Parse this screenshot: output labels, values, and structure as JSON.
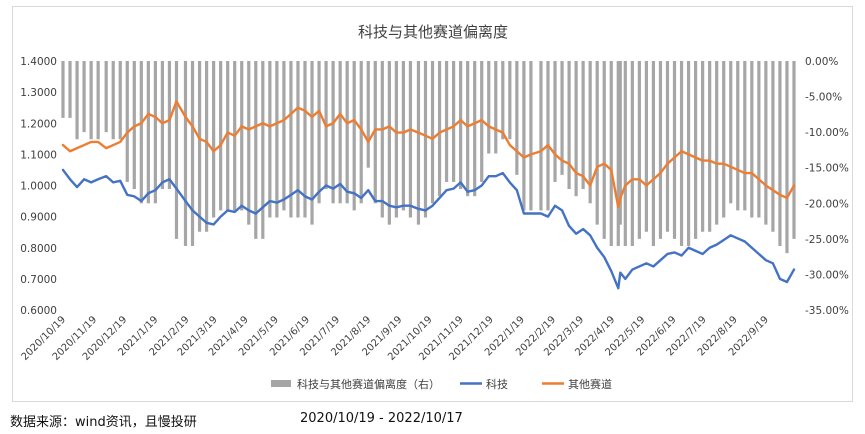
{
  "chart_data": {
    "type": "line",
    "title": "科技与其他赛道偏离度",
    "x_start": "2020/10/19",
    "x_end": "2022/10/17",
    "x_tick_labels": [
      "2020/10/19",
      "2020/11/19",
      "2020/12/19",
      "2021/1/19",
      "2021/2/19",
      "2021/3/19",
      "2021/4/19",
      "2021/5/19",
      "2021/6/19",
      "2021/7/19",
      "2021/8/19",
      "2021/9/19",
      "2021/10/19",
      "2021/11/19",
      "2021/12/19",
      "2022/1/19",
      "2022/2/19",
      "2022/3/19",
      "2022/4/19",
      "2022/5/19",
      "2022/6/19",
      "2022/7/19",
      "2022/8/19",
      "2022/9/19"
    ],
    "y_left_ticks": [
      "1.4000",
      "1.3000",
      "1.2000",
      "1.1000",
      "1.0000",
      "0.9000",
      "0.8000",
      "0.7000",
      "0.6000"
    ],
    "y_left_range": [
      0.6,
      1.4
    ],
    "y_right_ticks": [
      "0.00%",
      "-5.00%",
      "-10.00%",
      "-15.00%",
      "-20.00%",
      "-25.00%",
      "-30.00%",
      "-35.00%"
    ],
    "y_right_range": [
      -35,
      0
    ],
    "grid": false,
    "legend_position": "bottom",
    "legend": [
      {
        "label": "科技与其他赛道偏离度（右）",
        "color": "#a6a6a6",
        "kind": "bar"
      },
      {
        "label": "科技",
        "color": "#4472c4",
        "kind": "line"
      },
      {
        "label": "其他赛道",
        "color": "#ed7d31",
        "kind": "line"
      }
    ],
    "series": [
      {
        "name": "科技",
        "axis": "left",
        "color": "#4472c4",
        "x": [
          "2020/10/19",
          "2020/10/26",
          "2020/11/2",
          "2020/11/9",
          "2020/11/16",
          "2020/11/23",
          "2020/12/1",
          "2020/12/8",
          "2020/12/15",
          "2020/12/22",
          "2020/12/29",
          "2021/1/5",
          "2021/1/12",
          "2021/1/19",
          "2021/1/26",
          "2021/2/2",
          "2021/2/9",
          "2021/2/18",
          "2021/2/25",
          "2021/3/4",
          "2021/3/11",
          "2021/3/18",
          "2021/3/25",
          "2021/4/1",
          "2021/4/8",
          "2021/4/15",
          "2021/4/22",
          "2021/4/29",
          "2021/5/6",
          "2021/5/13",
          "2021/5/20",
          "2021/5/27",
          "2021/6/3",
          "2021/6/10",
          "2021/6/17",
          "2021/6/24",
          "2021/7/1",
          "2021/7/8",
          "2021/7/15",
          "2021/7/22",
          "2021/7/29",
          "2021/8/5",
          "2021/8/12",
          "2021/8/19",
          "2021/8/26",
          "2021/9/2",
          "2021/9/9",
          "2021/9/16",
          "2021/9/23",
          "2021/9/30",
          "2021/10/8",
          "2021/10/15",
          "2021/10/22",
          "2021/10/29",
          "2021/11/5",
          "2021/11/12",
          "2021/11/19",
          "2021/11/26",
          "2021/12/3",
          "2021/12/10",
          "2021/12/17",
          "2021/12/24",
          "2021/12/31",
          "2022/1/7",
          "2022/1/14",
          "2022/1/21",
          "2022/1/28",
          "2022/2/7",
          "2022/2/14",
          "2022/2/21",
          "2022/2/28",
          "2022/3/7",
          "2022/3/14",
          "2022/3/21",
          "2022/3/28",
          "2022/4/4",
          "2022/4/11",
          "2022/4/18",
          "2022/4/25",
          "2022/4/27",
          "2022/5/2",
          "2022/5/9",
          "2022/5/16",
          "2022/5/23",
          "2022/5/30",
          "2022/6/6",
          "2022/6/13",
          "2022/6/20",
          "2022/6/27",
          "2022/7/4",
          "2022/7/11",
          "2022/7/18",
          "2022/7/25",
          "2022/8/1",
          "2022/8/8",
          "2022/8/15",
          "2022/8/22",
          "2022/8/29",
          "2022/9/5",
          "2022/9/12",
          "2022/9/19",
          "2022/9/26",
          "2022/10/3",
          "2022/10/10",
          "2022/10/17"
        ],
        "y": [
          1.05,
          1.02,
          0.995,
          1.02,
          1.01,
          1.02,
          1.03,
          1.01,
          1.015,
          0.97,
          0.965,
          0.95,
          0.975,
          0.985,
          1.01,
          1.02,
          0.99,
          0.95,
          0.92,
          0.9,
          0.88,
          0.875,
          0.9,
          0.92,
          0.915,
          0.935,
          0.92,
          0.91,
          0.93,
          0.95,
          0.945,
          0.955,
          0.97,
          0.985,
          0.965,
          0.955,
          0.98,
          1.0,
          0.99,
          1.005,
          0.98,
          0.975,
          0.96,
          0.985,
          0.95,
          0.95,
          0.935,
          0.93,
          0.935,
          0.935,
          0.925,
          0.92,
          0.935,
          0.96,
          0.985,
          0.99,
          1.01,
          0.98,
          0.985,
          1.0,
          1.03,
          1.03,
          1.04,
          1.01,
          0.985,
          0.91,
          0.91,
          0.91,
          0.9,
          0.935,
          0.92,
          0.87,
          0.845,
          0.86,
          0.84,
          0.8,
          0.77,
          0.725,
          0.67,
          0.72,
          0.7,
          0.73,
          0.74,
          0.75,
          0.74,
          0.76,
          0.78,
          0.785,
          0.775,
          0.8,
          0.79,
          0.78,
          0.8,
          0.81,
          0.825,
          0.84,
          0.83,
          0.82,
          0.8,
          0.78,
          0.76,
          0.75,
          0.7,
          0.69,
          0.73
        ]
      },
      {
        "name": "其他赛道",
        "axis": "left",
        "color": "#ed7d31",
        "x": [
          "2020/10/19",
          "2020/10/26",
          "2020/11/2",
          "2020/11/9",
          "2020/11/16",
          "2020/11/23",
          "2020/12/1",
          "2020/12/8",
          "2020/12/15",
          "2020/12/22",
          "2020/12/29",
          "2021/1/5",
          "2021/1/12",
          "2021/1/19",
          "2021/1/26",
          "2021/2/2",
          "2021/2/9",
          "2021/2/18",
          "2021/2/25",
          "2021/3/4",
          "2021/3/11",
          "2021/3/18",
          "2021/3/25",
          "2021/4/1",
          "2021/4/8",
          "2021/4/15",
          "2021/4/22",
          "2021/4/29",
          "2021/5/6",
          "2021/5/13",
          "2021/5/20",
          "2021/5/27",
          "2021/6/3",
          "2021/6/10",
          "2021/6/17",
          "2021/6/24",
          "2021/7/1",
          "2021/7/8",
          "2021/7/15",
          "2021/7/22",
          "2021/7/29",
          "2021/8/5",
          "2021/8/12",
          "2021/8/19",
          "2021/8/26",
          "2021/9/2",
          "2021/9/9",
          "2021/9/16",
          "2021/9/23",
          "2021/9/30",
          "2021/10/8",
          "2021/10/15",
          "2021/10/22",
          "2021/10/29",
          "2021/11/5",
          "2021/11/12",
          "2021/11/19",
          "2021/11/26",
          "2021/12/3",
          "2021/12/10",
          "2021/12/17",
          "2021/12/24",
          "2021/12/31",
          "2022/1/7",
          "2022/1/14",
          "2022/1/21",
          "2022/1/28",
          "2022/2/7",
          "2022/2/14",
          "2022/2/21",
          "2022/2/28",
          "2022/3/7",
          "2022/3/14",
          "2022/3/21",
          "2022/3/28",
          "2022/4/4",
          "2022/4/11",
          "2022/4/18",
          "2022/4/25",
          "2022/4/27",
          "2022/5/2",
          "2022/5/9",
          "2022/5/16",
          "2022/5/23",
          "2022/5/30",
          "2022/6/6",
          "2022/6/13",
          "2022/6/20",
          "2022/6/27",
          "2022/7/4",
          "2022/7/11",
          "2022/7/18",
          "2022/7/25",
          "2022/8/1",
          "2022/8/8",
          "2022/8/15",
          "2022/8/22",
          "2022/8/29",
          "2022/9/5",
          "2022/9/12",
          "2022/9/19",
          "2022/9/26",
          "2022/10/3",
          "2022/10/10",
          "2022/10/17"
        ],
        "y": [
          1.13,
          1.11,
          1.12,
          1.13,
          1.14,
          1.14,
          1.12,
          1.13,
          1.14,
          1.17,
          1.19,
          1.2,
          1.23,
          1.22,
          1.2,
          1.21,
          1.27,
          1.22,
          1.19,
          1.15,
          1.14,
          1.11,
          1.13,
          1.17,
          1.16,
          1.19,
          1.18,
          1.19,
          1.2,
          1.19,
          1.2,
          1.21,
          1.23,
          1.25,
          1.24,
          1.22,
          1.24,
          1.19,
          1.2,
          1.23,
          1.2,
          1.21,
          1.18,
          1.14,
          1.18,
          1.18,
          1.19,
          1.17,
          1.17,
          1.18,
          1.17,
          1.16,
          1.15,
          1.17,
          1.18,
          1.19,
          1.21,
          1.19,
          1.2,
          1.21,
          1.19,
          1.18,
          1.17,
          1.13,
          1.11,
          1.09,
          1.1,
          1.11,
          1.13,
          1.1,
          1.08,
          1.07,
          1.04,
          1.03,
          1.0,
          1.06,
          1.07,
          1.05,
          0.93,
          0.96,
          1.0,
          1.02,
          1.02,
          1.0,
          1.02,
          1.04,
          1.07,
          1.09,
          1.11,
          1.1,
          1.09,
          1.08,
          1.08,
          1.07,
          1.07,
          1.06,
          1.05,
          1.04,
          1.04,
          1.02,
          1.0,
          0.985,
          0.97,
          0.96,
          1.0
        ]
      },
      {
        "name": "科技与其他赛道偏离度（右）",
        "axis": "right",
        "type": "bar",
        "color": "#a6a6a6",
        "x": [
          "2020/10/19",
          "2020/10/26",
          "2020/11/2",
          "2020/11/9",
          "2020/11/16",
          "2020/11/23",
          "2020/12/1",
          "2020/12/8",
          "2020/12/15",
          "2020/12/22",
          "2020/12/29",
          "2021/1/5",
          "2021/1/12",
          "2021/1/19",
          "2021/1/26",
          "2021/2/2",
          "2021/2/9",
          "2021/2/18",
          "2021/2/25",
          "2021/3/4",
          "2021/3/11",
          "2021/3/18",
          "2021/3/25",
          "2021/4/1",
          "2021/4/8",
          "2021/4/15",
          "2021/4/22",
          "2021/4/29",
          "2021/5/6",
          "2021/5/13",
          "2021/5/20",
          "2021/5/27",
          "2021/6/3",
          "2021/6/10",
          "2021/6/17",
          "2021/6/24",
          "2021/7/1",
          "2021/7/8",
          "2021/7/15",
          "2021/7/22",
          "2021/7/29",
          "2021/8/5",
          "2021/8/12",
          "2021/8/19",
          "2021/8/26",
          "2021/9/2",
          "2021/9/9",
          "2021/9/16",
          "2021/9/23",
          "2021/9/30",
          "2021/10/8",
          "2021/10/15",
          "2021/10/22",
          "2021/10/29",
          "2021/11/5",
          "2021/11/12",
          "2021/11/19",
          "2021/11/26",
          "2021/12/3",
          "2021/12/10",
          "2021/12/17",
          "2021/12/24",
          "2021/12/31",
          "2022/1/7",
          "2022/1/14",
          "2022/1/21",
          "2022/1/28",
          "2022/2/7",
          "2022/2/14",
          "2022/2/21",
          "2022/2/28",
          "2022/3/7",
          "2022/3/14",
          "2022/3/21",
          "2022/3/28",
          "2022/4/4",
          "2022/4/11",
          "2022/4/18",
          "2022/4/25",
          "2022/4/27",
          "2022/5/2",
          "2022/5/9",
          "2022/5/16",
          "2022/5/23",
          "2022/5/30",
          "2022/6/6",
          "2022/6/13",
          "2022/6/20",
          "2022/6/27",
          "2022/7/4",
          "2022/7/11",
          "2022/7/18",
          "2022/7/25",
          "2022/8/1",
          "2022/8/8",
          "2022/8/15",
          "2022/8/22",
          "2022/8/29",
          "2022/9/5",
          "2022/9/12",
          "2022/9/19",
          "2022/9/26",
          "2022/10/3",
          "2022/10/10",
          "2022/10/17"
        ],
        "y": [
          -8,
          -8,
          -11,
          -10,
          -11,
          -11,
          -10,
          -11,
          -11,
          -17,
          -18,
          -20,
          -20,
          -20,
          -18,
          -18,
          -25,
          -26,
          -26,
          -24,
          -24,
          -22,
          -21,
          -21,
          -21,
          -21,
          -23,
          -25,
          -25,
          -22,
          -22,
          -21,
          -22,
          -22,
          -22,
          -23,
          -20,
          -18,
          -20,
          -20,
          -20,
          -21,
          -20,
          -15,
          -20,
          -22,
          -23,
          -22,
          -21,
          -22,
          -23,
          -22,
          -20,
          -19,
          -17,
          -17,
          -18,
          -19,
          -19,
          -17,
          -13,
          -13,
          -11,
          -11,
          -16,
          -21,
          -21,
          -21,
          -21,
          -17,
          -16,
          -18,
          -19,
          -18,
          -20,
          -23,
          -25,
          -26,
          -26,
          -23,
          -26,
          -26,
          -25,
          -24,
          -26,
          -25,
          -24,
          -25,
          -26,
          -26,
          -25,
          -24,
          -24,
          -23,
          -22,
          -20,
          -21,
          -21,
          -22,
          -22,
          -23,
          -24,
          -26,
          -27,
          -25
        ]
      }
    ]
  },
  "footer": {
    "source": "数据来源：wind资讯，且慢投研",
    "date_range": "2020/10/19    -    2022/10/17"
  }
}
